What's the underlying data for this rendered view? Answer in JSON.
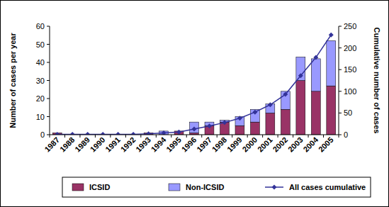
{
  "chart_data": {
    "type": "bar",
    "stacked": true,
    "categories": [
      "1987",
      "1988",
      "1989",
      "1990",
      "1991",
      "1992",
      "1993",
      "1994",
      "1995",
      "1996",
      "1997",
      "1998",
      "1999",
      "2000",
      "2001",
      "2002",
      "2003",
      "2004",
      "2005"
    ],
    "series": [
      {
        "name": "ICSID",
        "type": "bar",
        "color": "#993366",
        "values": [
          1,
          0,
          0,
          0,
          0,
          0,
          1,
          0,
          2,
          1,
          5,
          7,
          5,
          7,
          12,
          14,
          30,
          24,
          27
        ]
      },
      {
        "name": "Non-ICSID",
        "type": "bar",
        "color": "#9999ff",
        "values": [
          0,
          0,
          0,
          0,
          0,
          0,
          0,
          2,
          0,
          6,
          2,
          1,
          5,
          7,
          5,
          10,
          13,
          18,
          25
        ]
      },
      {
        "name": "All cases cumulative",
        "type": "line",
        "axis": "y2",
        "color": "#333399",
        "marker": "diamond",
        "line_style": "solid",
        "values": [
          1,
          1,
          1,
          1,
          1,
          1,
          2,
          4,
          6,
          13,
          20,
          28,
          38,
          52,
          69,
          93,
          136,
          178,
          230
        ]
      }
    ],
    "y_label": "Number of cases per year",
    "y2_label": "Cumulative number of cases",
    "ylim": [
      0,
      60
    ],
    "yticks": [
      0,
      10,
      20,
      30,
      40,
      50,
      60
    ],
    "y2lim": [
      0,
      250
    ],
    "y2ticks": [
      0,
      50,
      100,
      150,
      200,
      250
    ],
    "grid": false,
    "legend": "bottom"
  }
}
